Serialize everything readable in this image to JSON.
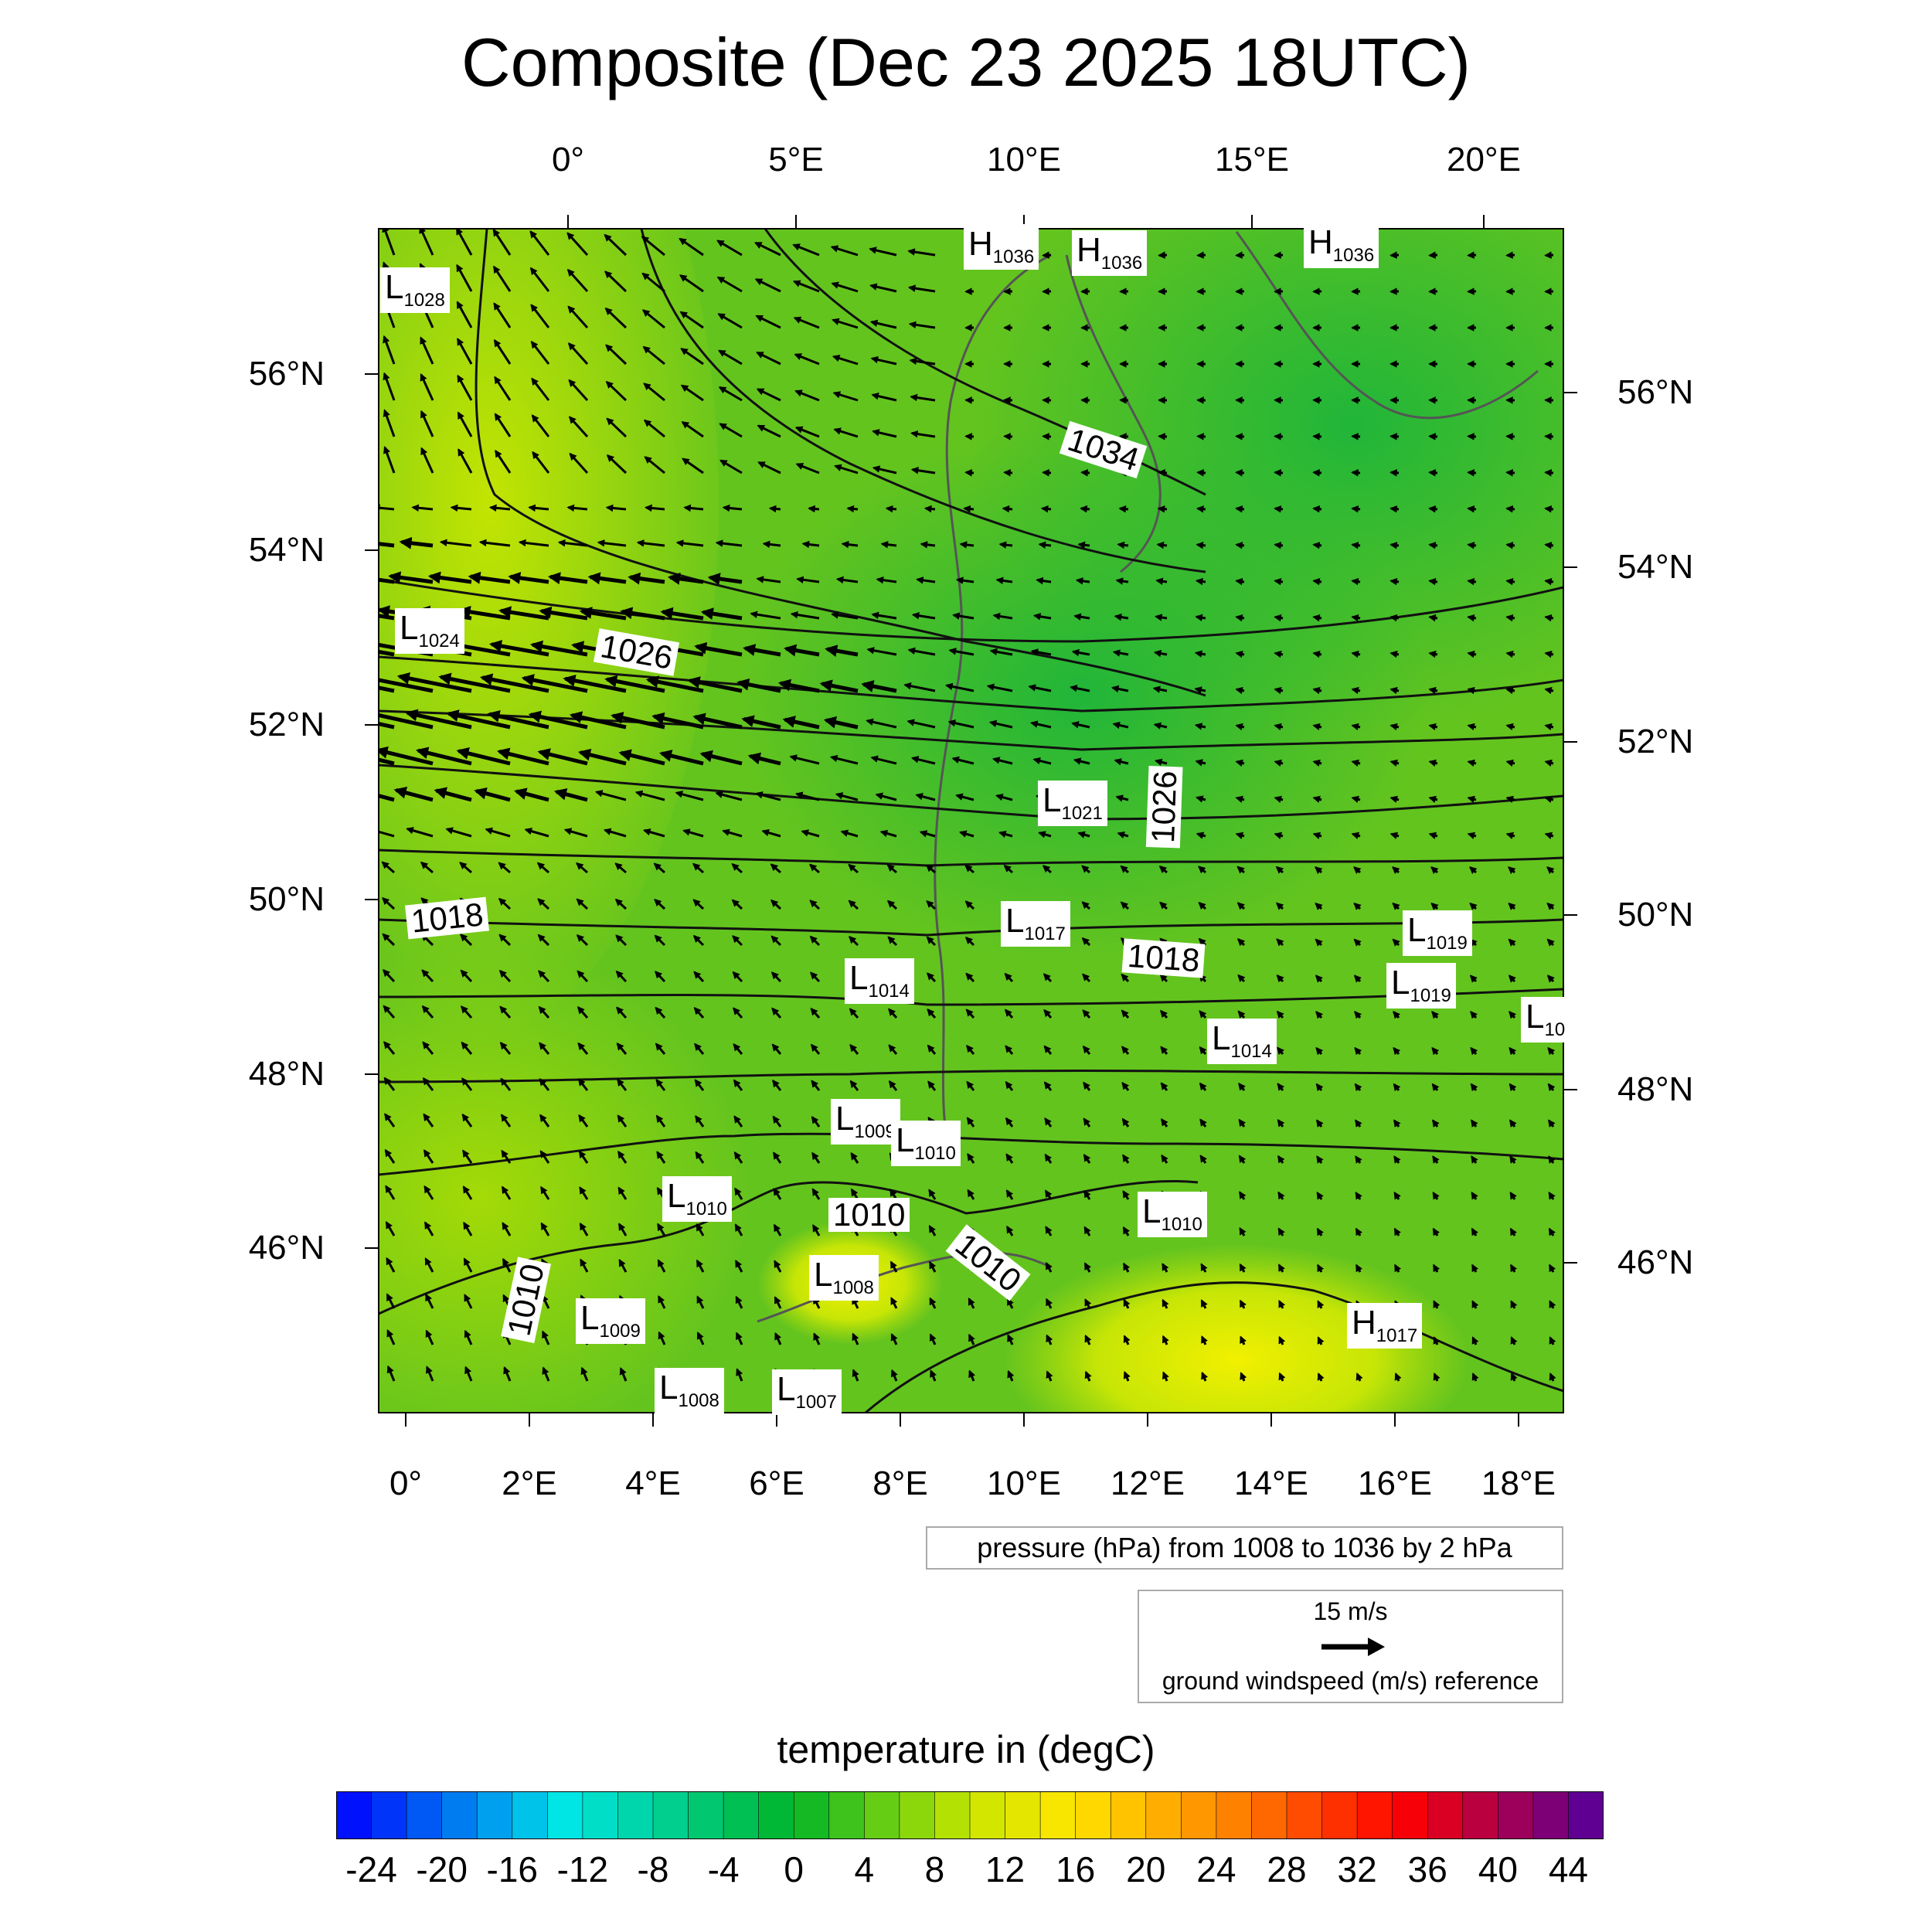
{
  "title": "Composite (Dec 23 2025 18UTC)",
  "map_axes": {
    "top_lon_labels": [
      "0°",
      "5°E",
      "10°E",
      "15°E",
      "20°E"
    ],
    "bottom_lon_labels": [
      "0°",
      "2°E",
      "4°E",
      "6°E",
      "8°E",
      "10°E",
      "12°E",
      "14°E",
      "16°E",
      "18°E"
    ],
    "left_lat_labels": [
      "56°N",
      "54°N",
      "52°N",
      "50°N",
      "48°N",
      "46°N"
    ],
    "right_lat_labels": [
      "56°N",
      "54°N",
      "52°N",
      "50°N",
      "48°N",
      "46°N"
    ]
  },
  "pressure_centers": [
    {
      "kind": "H",
      "value": "1036"
    },
    {
      "kind": "H",
      "value": "1036"
    },
    {
      "kind": "H",
      "value": "1036"
    },
    {
      "kind": "L",
      "value": "1028"
    },
    {
      "kind": "L",
      "value": "1024"
    },
    {
      "kind": "L",
      "value": "1021"
    },
    {
      "kind": "L",
      "value": "1017"
    },
    {
      "kind": "L",
      "value": "1019"
    },
    {
      "kind": "L",
      "value": "1019"
    },
    {
      "kind": "L",
      "value": "10"
    },
    {
      "kind": "L",
      "value": "1014"
    },
    {
      "kind": "L",
      "value": "1014"
    },
    {
      "kind": "L",
      "value": "1009"
    },
    {
      "kind": "L",
      "value": "1010"
    },
    {
      "kind": "L",
      "value": "1010"
    },
    {
      "kind": "L",
      "value": "1010"
    },
    {
      "kind": "L",
      "value": "1008"
    },
    {
      "kind": "L",
      "value": "1009"
    },
    {
      "kind": "L",
      "value": "1008"
    },
    {
      "kind": "L",
      "value": "1007"
    },
    {
      "kind": "H",
      "value": "1017"
    }
  ],
  "contour_labels": [
    "1034",
    "1026",
    "1026",
    "1018",
    "1018",
    "1010",
    "1010",
    "1010"
  ],
  "pressure_note": "pressure (hPa) from 1008 to 1036 by 2 hPa",
  "wind_reference": {
    "speed": "15 m/s",
    "caption": "ground windspeed (m/s) reference"
  },
  "colorbar": {
    "title": "temperature in (degC)",
    "tick_labels": [
      "-24",
      "-20",
      "-16",
      "-12",
      "-8",
      "-4",
      "0",
      "4",
      "8",
      "12",
      "16",
      "20",
      "24",
      "28",
      "32",
      "36",
      "40",
      "44"
    ],
    "range": [
      -26,
      46
    ],
    "step": 2
  },
  "colors": {
    "land_warm": "#c8e600",
    "land_mid": "#6cc81e",
    "land_cold": "#1aa83c",
    "alps_yellow": "#f0f000",
    "contour": "#111111",
    "coast": "#555555"
  }
}
